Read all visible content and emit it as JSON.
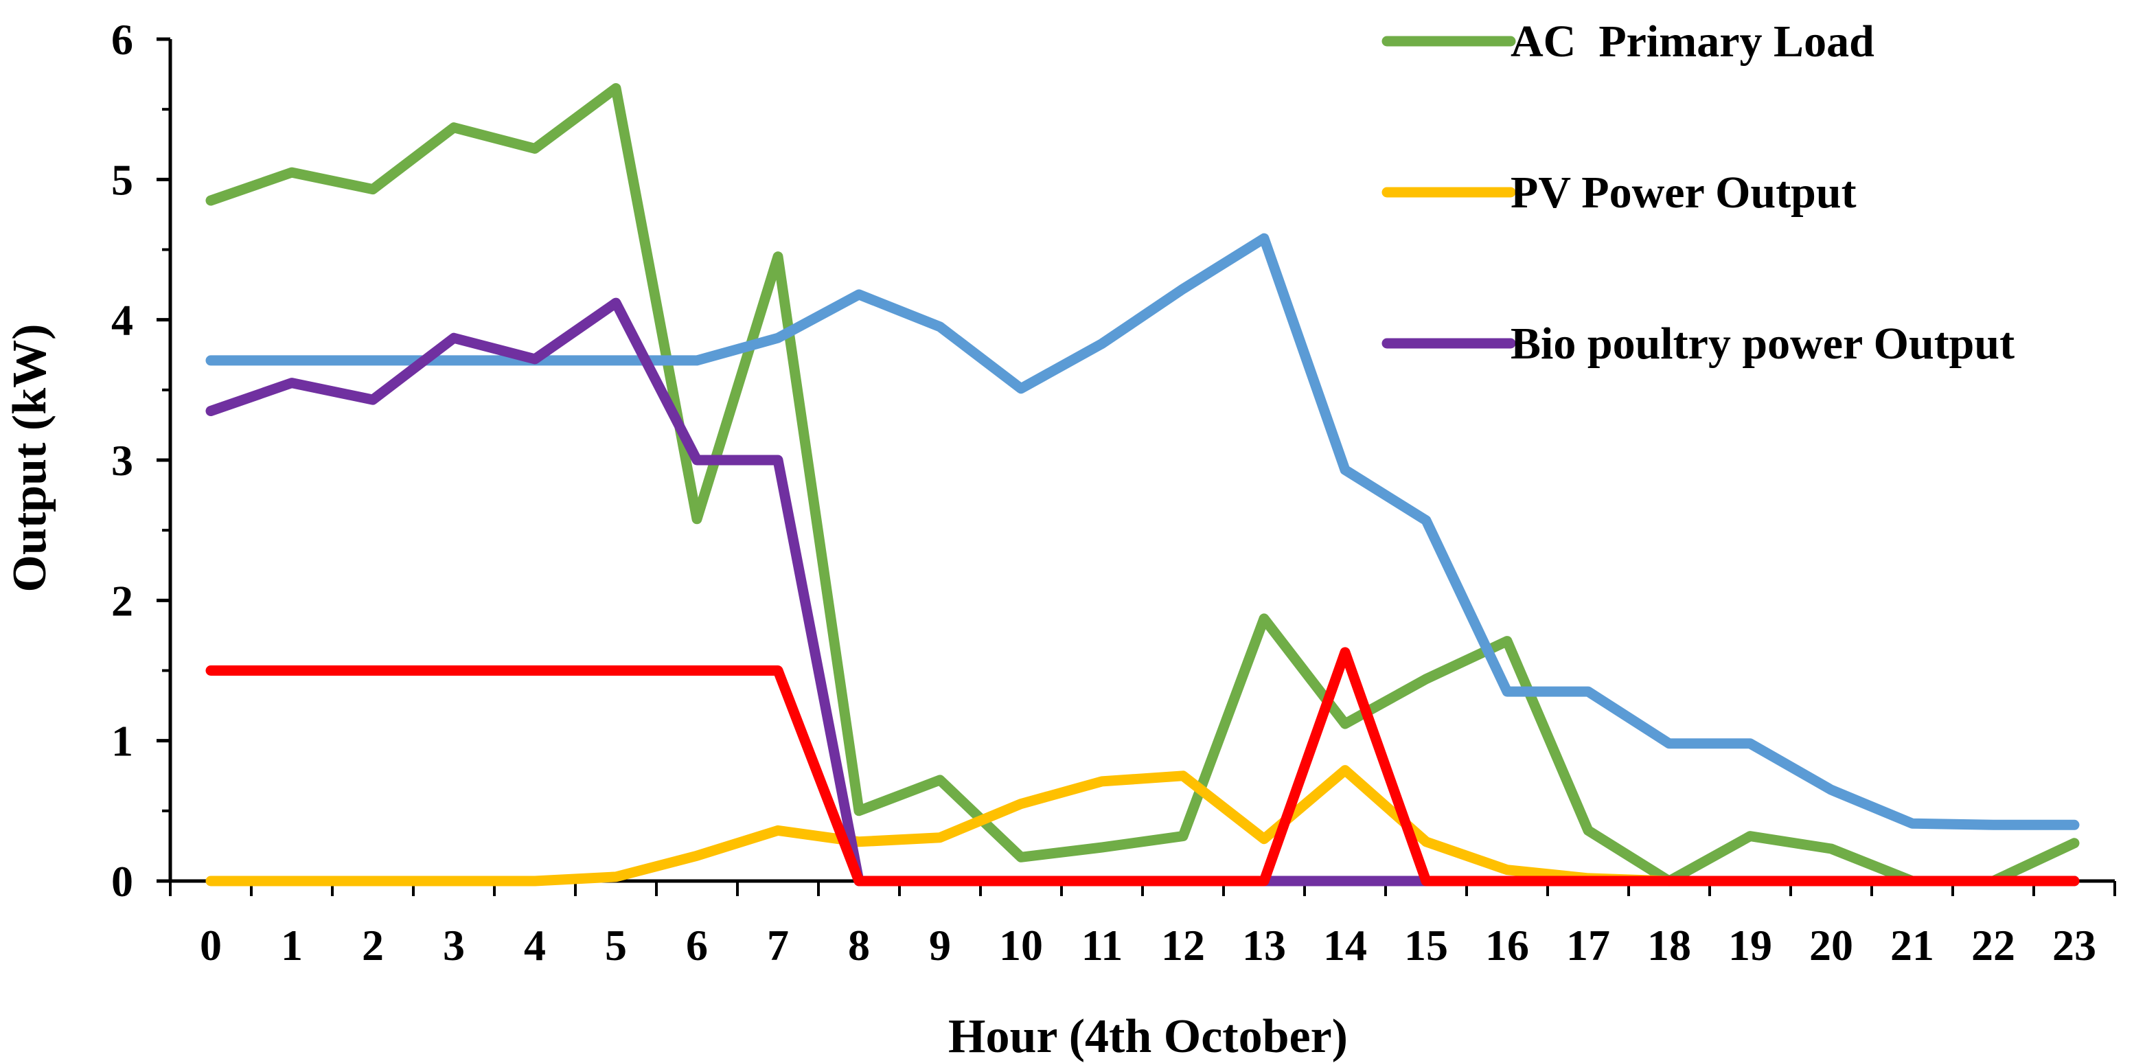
{
  "chart_data": {
    "type": "line",
    "title": "",
    "xlabel": "Hour (4th October)",
    "ylabel": "Output (kW)",
    "ylim": [
      0,
      6
    ],
    "yticks": [
      0,
      1,
      2,
      3,
      4,
      5,
      6
    ],
    "categories": [
      "0",
      "1",
      "2",
      "3",
      "4",
      "5",
      "6",
      "7",
      "8",
      "9",
      "10",
      "11",
      "12",
      "13",
      "14",
      "15",
      "16",
      "17",
      "18",
      "19",
      "20",
      "21",
      "22",
      "23"
    ],
    "grid": false,
    "legend_position": "top-right",
    "series": [
      {
        "name": "AC  Primary Load",
        "color": "#70AD47",
        "in_legend": true,
        "values": [
          4.85,
          5.05,
          4.93,
          5.37,
          5.22,
          5.65,
          2.58,
          4.45,
          0.5,
          0.72,
          0.17,
          0.24,
          0.32,
          1.87,
          1.12,
          1.44,
          1.71,
          0.36,
          0.0,
          0.32,
          0.23,
          0.0,
          0.0,
          0.27
        ]
      },
      {
        "name": "PV Power Output",
        "color": "#FFC000",
        "in_legend": true,
        "values": [
          0,
          0,
          0,
          0,
          0,
          0.03,
          0.18,
          0.36,
          0.28,
          0.31,
          0.55,
          0.71,
          0.75,
          0.3,
          0.79,
          0.28,
          0.08,
          0.02,
          0,
          0,
          0,
          0,
          0,
          0
        ]
      },
      {
        "name": "Bio poultry power Output",
        "color": "#7030A0",
        "in_legend": true,
        "values": [
          3.35,
          3.55,
          3.43,
          3.87,
          3.72,
          4.12,
          3.0,
          3.0,
          0,
          0,
          0,
          0,
          0,
          0,
          0,
          0,
          0,
          0,
          0,
          0,
          0,
          0,
          0,
          0
        ]
      },
      {
        "name": "",
        "color": "#5B9BD5",
        "in_legend": false,
        "values": [
          3.71,
          3.71,
          3.71,
          3.71,
          3.71,
          3.71,
          3.71,
          3.87,
          4.18,
          3.95,
          3.51,
          3.83,
          4.22,
          4.58,
          2.93,
          2.57,
          1.35,
          1.35,
          0.98,
          0.98,
          0.65,
          0.41,
          0.4,
          0.4
        ]
      },
      {
        "name": "",
        "color": "#FF0000",
        "in_legend": false,
        "values": [
          1.5,
          1.5,
          1.5,
          1.5,
          1.5,
          1.5,
          1.5,
          1.5,
          0,
          0,
          0,
          0,
          0,
          0,
          1.63,
          0,
          0,
          0,
          0,
          0,
          0,
          0,
          0,
          0
        ]
      }
    ]
  }
}
